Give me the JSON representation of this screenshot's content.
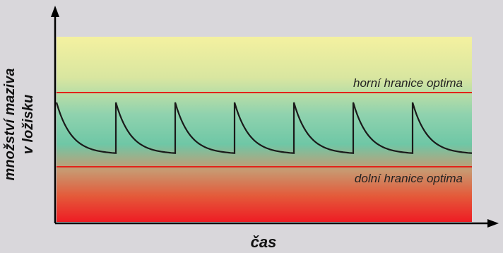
{
  "diagram": {
    "y_axis_label_line1": "množství maziva",
    "y_axis_label_line2": "v ložisku",
    "x_axis_label": "čas",
    "upper_limit_label": "horní hranice optima",
    "lower_limit_label": "dolní hranice optima",
    "colors": {
      "background": "#d9d7db",
      "limit_line": "#e2231a",
      "curve": "#1a1a1a",
      "axis": "#000000",
      "gradient_top": "#f2f0a8",
      "gradient_mid": "#6fcaa8",
      "gradient_bottom": "#ee1c24"
    },
    "relubrication_cycles": 7
  }
}
